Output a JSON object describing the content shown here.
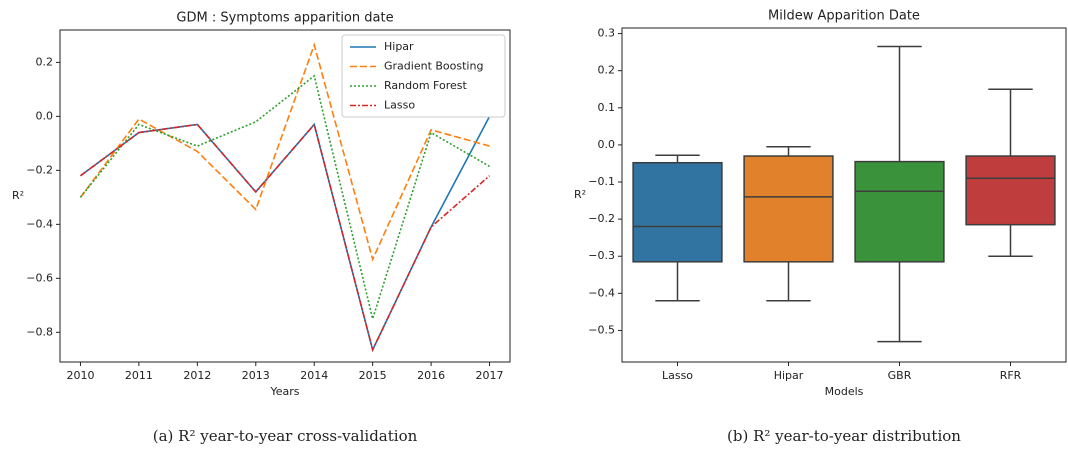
{
  "chart_data": [
    {
      "type": "line",
      "title": "GDM : Symptoms apparition date",
      "xlabel": "Years",
      "ylabel": "R²",
      "caption": "(a) R² year-to-year cross-validation",
      "x": [
        2010,
        2011,
        2012,
        2013,
        2014,
        2015,
        2016,
        2017
      ],
      "xlim": [
        2009.65,
        2017.35
      ],
      "xticks": [
        2010,
        2011,
        2012,
        2013,
        2014,
        2015,
        2016,
        2017
      ],
      "ylim": [
        -0.91,
        0.32
      ],
      "yticks": [
        {
          "value": 0.2,
          "label": "0.2"
        },
        {
          "value": 0,
          "label": "0.0"
        },
        {
          "value": -0.2,
          "label": "−0.2"
        },
        {
          "value": -0.4,
          "label": "−0.4"
        },
        {
          "value": -0.6,
          "label": "−0.6"
        },
        {
          "value": -0.8,
          "label": "−0.8"
        }
      ],
      "legend": "upper right",
      "series": [
        {
          "name": "Hipar",
          "color": "#1f77b4",
          "linestyle": "solid",
          "values": [
            -0.22,
            -0.06,
            -0.03,
            -0.28,
            -0.03,
            -0.865,
            -0.41,
            0.0
          ]
        },
        {
          "name": "Gradient Boosting",
          "color": "#ff7f0e",
          "linestyle": "dashed",
          "values": [
            -0.3,
            -0.01,
            -0.13,
            -0.345,
            0.265,
            -0.53,
            -0.05,
            -0.11
          ]
        },
        {
          "name": "Random Forest",
          "color": "#2ca02c",
          "linestyle": "dotted",
          "values": [
            -0.3,
            -0.03,
            -0.11,
            -0.02,
            0.15,
            -0.75,
            -0.06,
            -0.185
          ]
        },
        {
          "name": "Lasso",
          "color": "#d62728",
          "linestyle": "dashdot",
          "values": [
            -0.22,
            -0.06,
            -0.03,
            -0.28,
            -0.03,
            -0.865,
            -0.41,
            -0.22
          ]
        }
      ]
    },
    {
      "type": "box",
      "title": "Mildew Apparition Date",
      "xlabel": "Models",
      "ylabel": "R²",
      "caption": "(b) R² year-to-year distribution",
      "categories": [
        "Lasso",
        "Hipar",
        "GBR",
        "RFR"
      ],
      "colors": [
        "#3274a1",
        "#e1812c",
        "#3a923a",
        "#c03d3e"
      ],
      "ylim": [
        -0.585,
        0.315
      ],
      "yticks": [
        {
          "value": 0.3,
          "label": "0.3"
        },
        {
          "value": 0.2,
          "label": "0.2"
        },
        {
          "value": 0.1,
          "label": "0.1"
        },
        {
          "value": 0,
          "label": "0.0"
        },
        {
          "value": -0.1,
          "label": "−0.1"
        },
        {
          "value": -0.2,
          "label": "−0.2"
        },
        {
          "value": -0.3,
          "label": "−0.3"
        },
        {
          "value": -0.4,
          "label": "−0.4"
        },
        {
          "value": -0.5,
          "label": "−0.5"
        }
      ],
      "whislo": [
        -0.42,
        -0.42,
        -0.53,
        -0.3
      ],
      "q1": [
        -0.315,
        -0.315,
        -0.315,
        -0.215
      ],
      "median": [
        -0.22,
        -0.14,
        -0.125,
        -0.09
      ],
      "q3": [
        -0.048,
        -0.03,
        -0.045,
        -0.03
      ],
      "whishi": [
        -0.028,
        -0.005,
        0.265,
        0.15
      ]
    }
  ]
}
